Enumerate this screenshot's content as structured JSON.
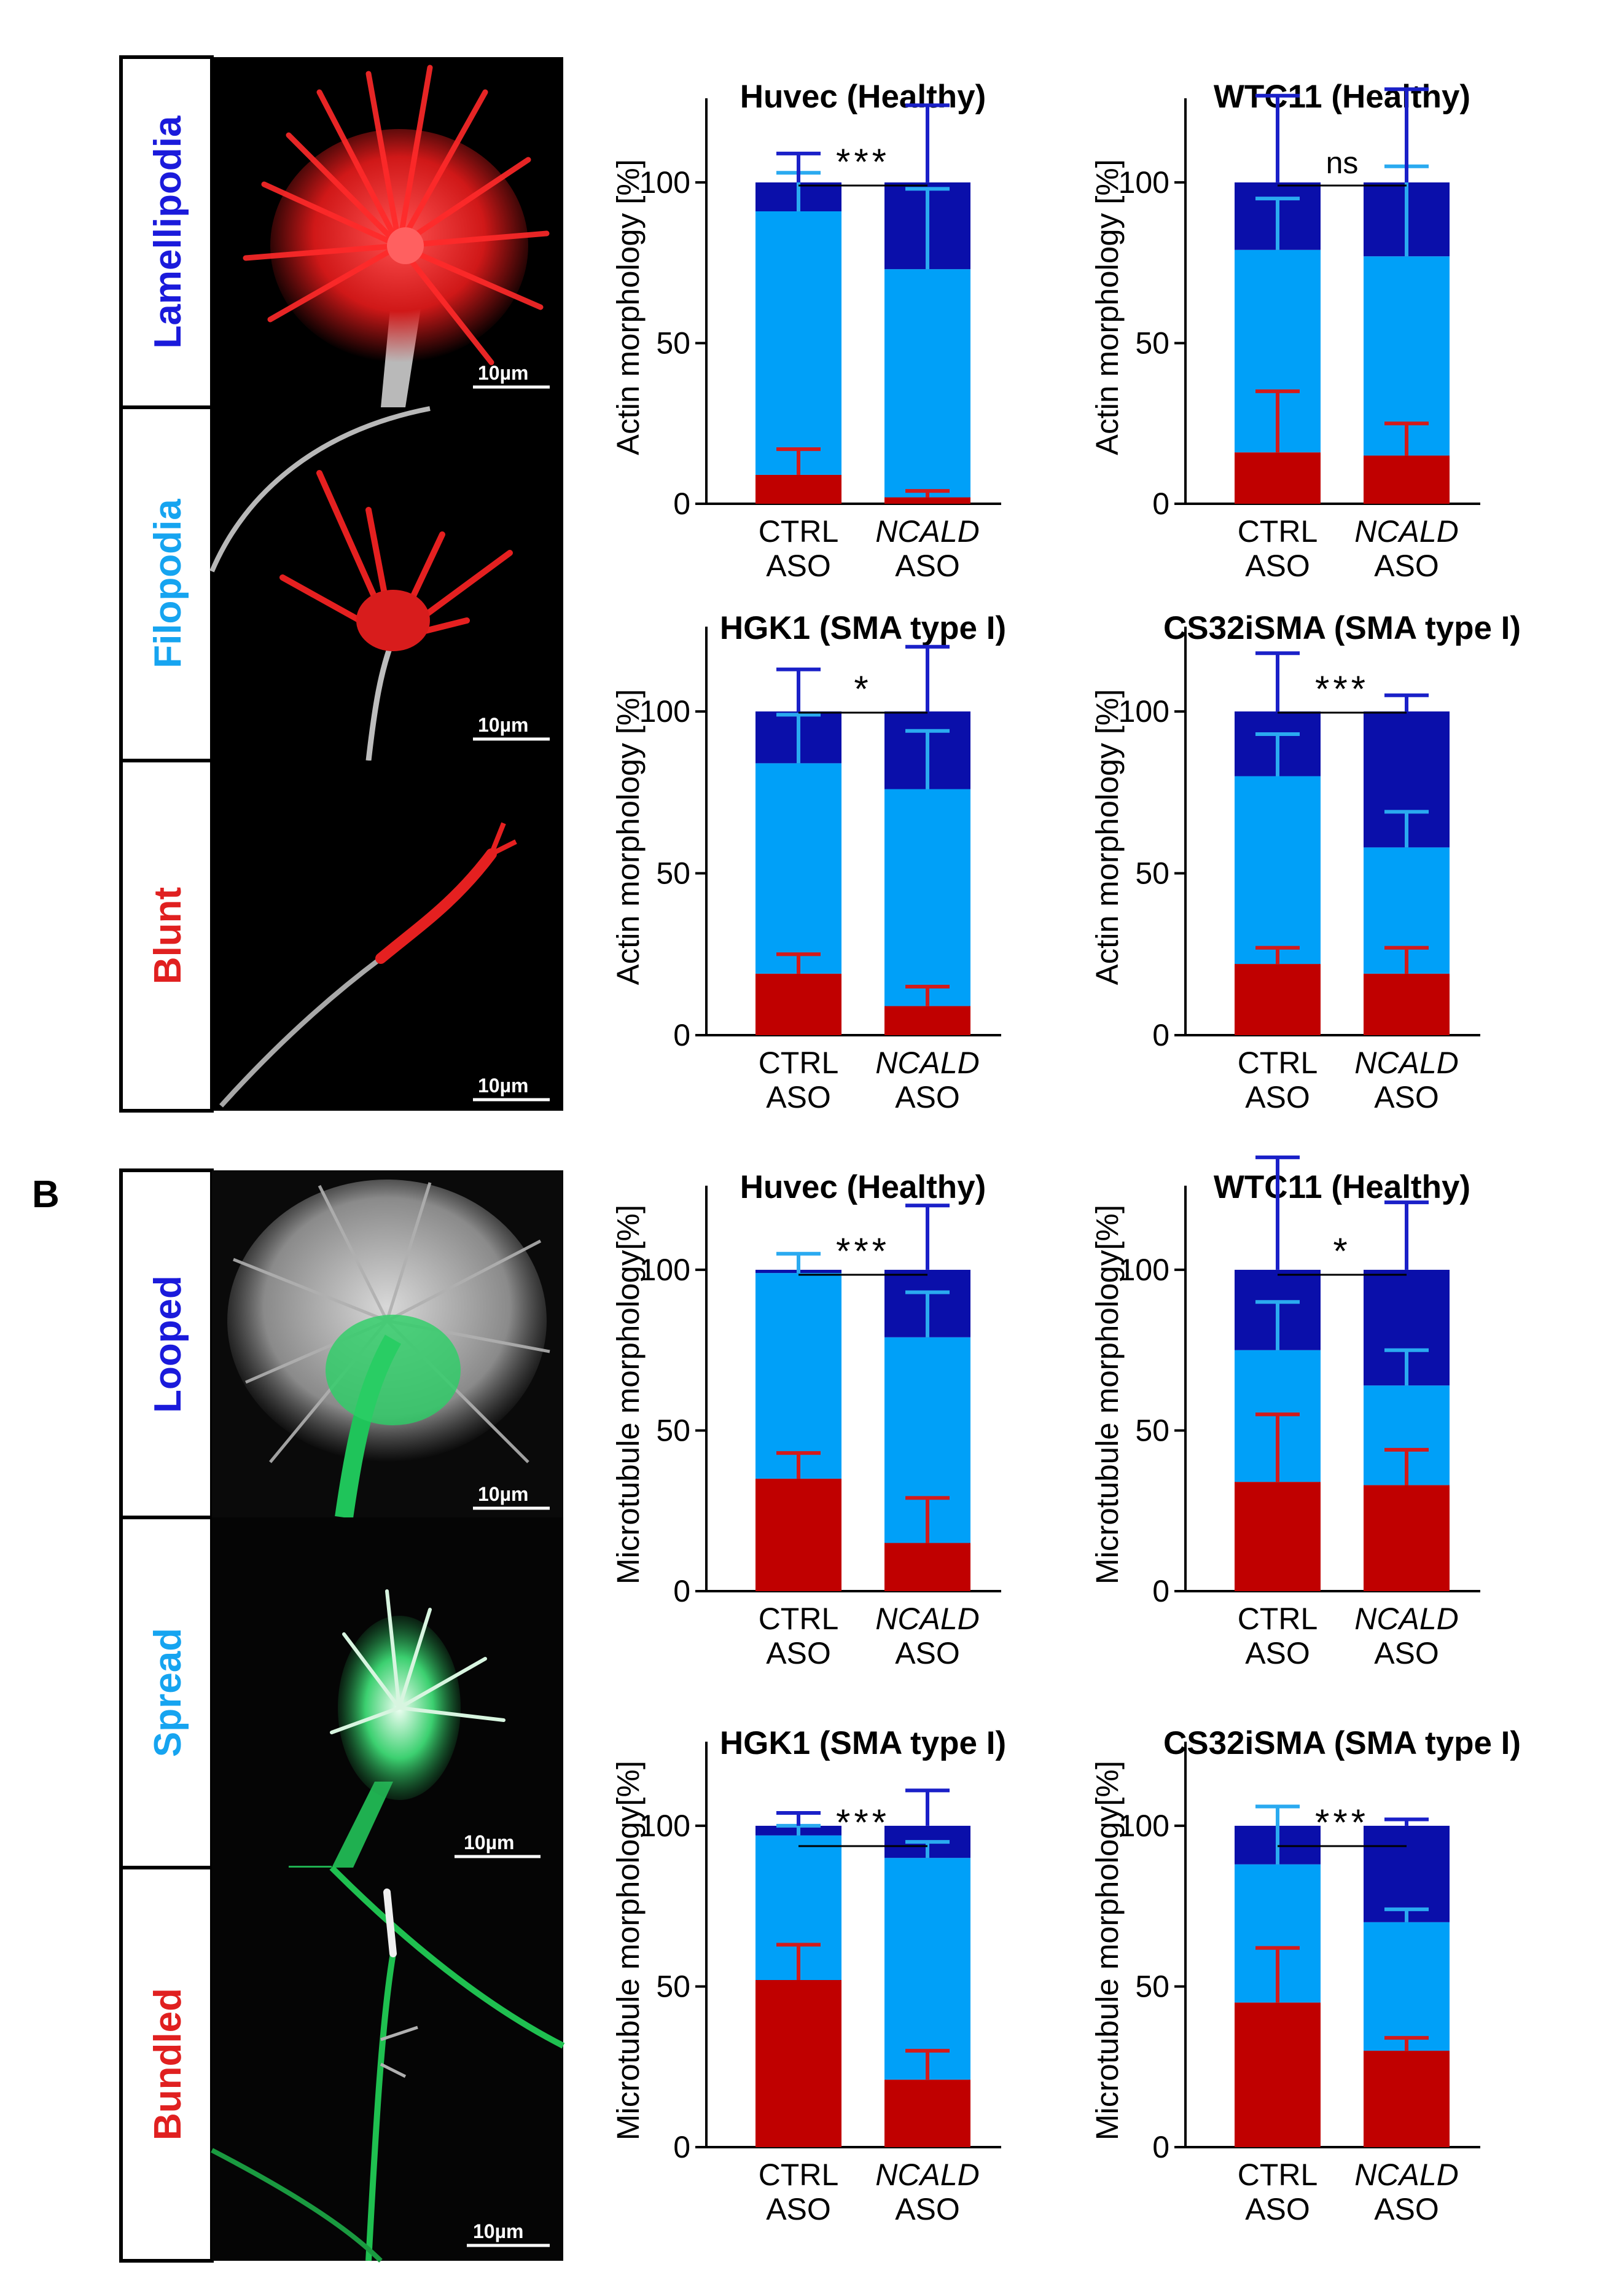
{
  "panel_label": "B",
  "colors": {
    "top": "#0a0faa",
    "middle": "#00a0f8",
    "bottom": "#c00000",
    "top_err": "#1a20c8",
    "middle_err": "#2aaaf0",
    "bottom_err": "#d41a1a"
  },
  "categories": [
    {
      "line1": "CTRL",
      "line2": "ASO",
      "italic": false
    },
    {
      "line1": "NCALD",
      "line2": "ASO",
      "italic": true
    }
  ],
  "image_panels": [
    {
      "label": "Lamellipodia",
      "color": "#1a1adb",
      "scale": "10µm",
      "icon": "actin-lamellipodia-micrograph"
    },
    {
      "label": "Filopodia",
      "color": "#16a4f0",
      "scale": "10µm",
      "icon": "actin-filopodia-micrograph"
    },
    {
      "label": "Blunt",
      "color": "#e02020",
      "scale": "10µm",
      "icon": "actin-blunt-micrograph"
    },
    {
      "label": "Looped",
      "color": "#1a1adb",
      "scale": "10µm",
      "icon": "microtubule-looped-micrograph"
    },
    {
      "label": "Spread",
      "color": "#16a4f0",
      "scale": "10µm",
      "icon": "microtubule-spread-micrograph"
    },
    {
      "label": "Bundled",
      "color": "#e02020",
      "scale": "10µm",
      "icon": "microtubule-bundled-micrograph"
    }
  ],
  "chart_data": [
    {
      "type": "bar",
      "stacked": true,
      "title": "Huvec (Healthy)",
      "ylabel": "Actin morphology [%]",
      "ylim": [
        0,
        130
      ],
      "yticks": [
        0,
        50,
        100
      ],
      "significance": "***",
      "series": [
        {
          "name": "",
          "values": [
            9,
            2
          ],
          "errors": [
            8,
            2
          ]
        },
        {
          "name": "",
          "values": [
            82,
            71
          ],
          "errors": [
            12,
            25
          ]
        },
        {
          "name": "",
          "values": [
            9,
            27
          ],
          "errors": [
            9,
            24
          ]
        }
      ]
    },
    {
      "type": "bar",
      "stacked": true,
      "title": "WTC11 (Healthy)",
      "ylabel": "Actin morphology [%]",
      "ylim": [
        0,
        130
      ],
      "yticks": [
        0,
        50,
        100
      ],
      "significance": "ns",
      "series": [
        {
          "name": "",
          "values": [
            16,
            15
          ],
          "errors": [
            19,
            10
          ]
        },
        {
          "name": "",
          "values": [
            63,
            62
          ],
          "errors": [
            16,
            28
          ]
        },
        {
          "name": "",
          "values": [
            21,
            23
          ],
          "errors": [
            27,
            29
          ]
        }
      ]
    },
    {
      "type": "bar",
      "stacked": true,
      "title": "HGK1 (SMA type I)",
      "ylabel": "Actin morphology [%]",
      "ylim": [
        0,
        130
      ],
      "yticks": [
        0,
        50,
        100
      ],
      "significance": "*",
      "series": [
        {
          "name": "",
          "values": [
            19,
            9
          ],
          "errors": [
            6,
            6
          ]
        },
        {
          "name": "",
          "values": [
            65,
            67
          ],
          "errors": [
            15,
            18
          ]
        },
        {
          "name": "",
          "values": [
            16,
            24
          ],
          "errors": [
            13,
            20
          ]
        }
      ]
    },
    {
      "type": "bar",
      "stacked": true,
      "title": "CS32iSMA (SMA type I)",
      "ylabel": "Actin morphology [%]",
      "ylim": [
        0,
        130
      ],
      "yticks": [
        0,
        50,
        100
      ],
      "significance": "***",
      "series": [
        {
          "name": "",
          "values": [
            22,
            19
          ],
          "errors": [
            5,
            8
          ]
        },
        {
          "name": "",
          "values": [
            58,
            39
          ],
          "errors": [
            13,
            11
          ]
        },
        {
          "name": "",
          "values": [
            20,
            42
          ],
          "errors": [
            18,
            5
          ]
        }
      ]
    },
    {
      "type": "bar",
      "stacked": true,
      "title": "Huvec (Healthy)",
      "ylabel": "Microtubule morphology[%]",
      "ylim": [
        0,
        130
      ],
      "yticks": [
        0,
        50,
        100
      ],
      "significance": "***",
      "series": [
        {
          "name": "",
          "values": [
            35,
            15
          ],
          "errors": [
            8,
            14
          ]
        },
        {
          "name": "",
          "values": [
            64,
            64
          ],
          "errors": [
            6,
            14
          ]
        },
        {
          "name": "",
          "values": [
            1,
            21
          ],
          "errors": [
            0,
            20
          ]
        }
      ]
    },
    {
      "type": "bar",
      "stacked": true,
      "title": "WTC11 (Healthy)",
      "ylabel": "Microtubule morphology[%]",
      "ylim": [
        0,
        130
      ],
      "yticks": [
        0,
        50,
        100
      ],
      "significance": "*",
      "series": [
        {
          "name": "",
          "values": [
            34,
            33
          ],
          "errors": [
            21,
            11
          ]
        },
        {
          "name": "",
          "values": [
            41,
            31
          ],
          "errors": [
            15,
            11
          ]
        },
        {
          "name": "",
          "values": [
            25,
            36
          ],
          "errors": [
            35,
            21
          ]
        }
      ]
    },
    {
      "type": "bar",
      "stacked": true,
      "title": "HGK1 (SMA type I)",
      "ylabel": "Microtubule morphology[%]",
      "ylim": [
        0,
        130
      ],
      "yticks": [
        0,
        50,
        100
      ],
      "significance": "***",
      "series": [
        {
          "name": "",
          "values": [
            52,
            21
          ],
          "errors": [
            11,
            9
          ]
        },
        {
          "name": "",
          "values": [
            45,
            69
          ],
          "errors": [
            3,
            5
          ]
        },
        {
          "name": "",
          "values": [
            3,
            10
          ],
          "errors": [
            4,
            11
          ]
        }
      ]
    },
    {
      "type": "bar",
      "stacked": true,
      "title": "CS32iSMA (SMA type I)",
      "ylabel": "Microtubule morphology[%]",
      "ylim": [
        0,
        130
      ],
      "yticks": [
        0,
        50,
        100
      ],
      "significance": "***",
      "series": [
        {
          "name": "",
          "values": [
            45,
            30
          ],
          "errors": [
            17,
            4
          ]
        },
        {
          "name": "",
          "values": [
            43,
            40
          ],
          "errors": [
            18,
            4
          ]
        },
        {
          "name": "",
          "values": [
            12,
            30
          ],
          "errors": [
            0,
            2
          ]
        }
      ]
    }
  ]
}
